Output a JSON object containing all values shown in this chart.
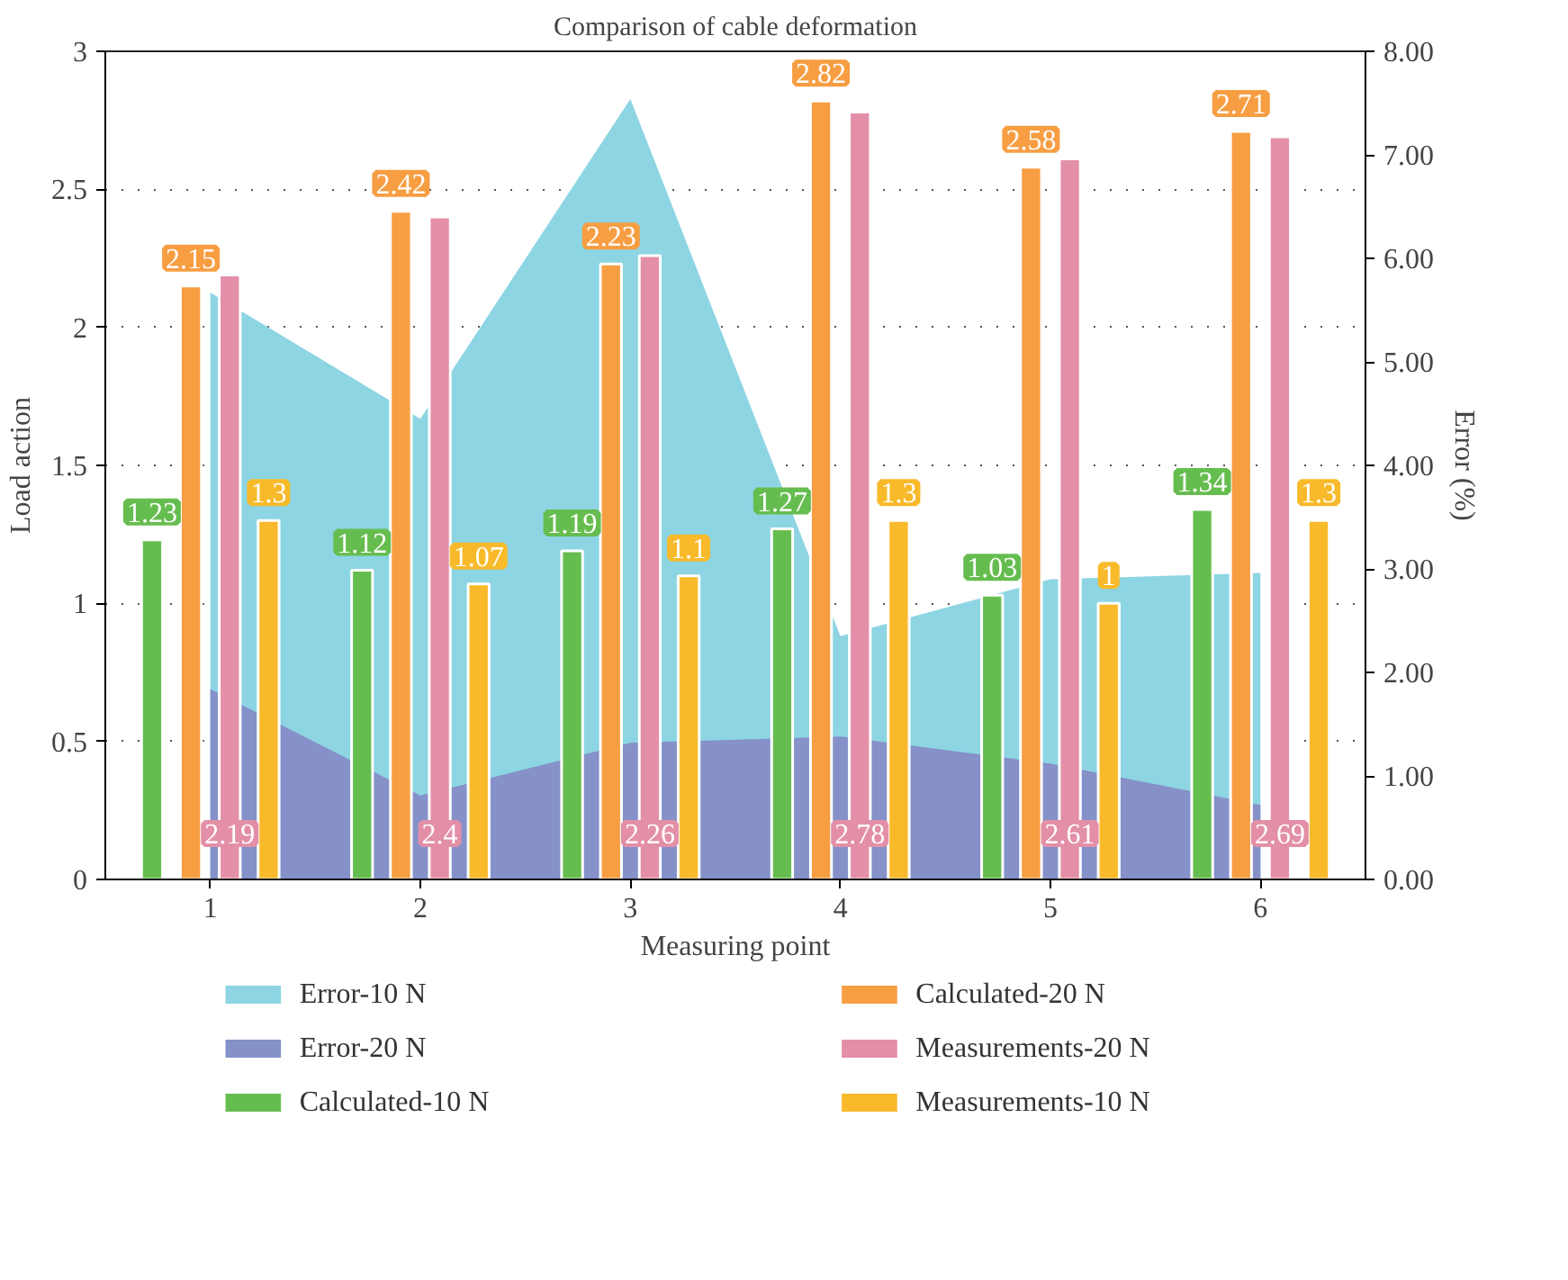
{
  "chart_data": {
    "type": "bar",
    "title": "Comparison of cable deformation",
    "xlabel": "Measuring point",
    "ylabel": "Load action",
    "y2label": "Error (%)",
    "categories": [
      "1",
      "2",
      "3",
      "4",
      "5",
      "6"
    ],
    "series": [
      {
        "name": "Error-10 N",
        "type": "area",
        "axis": "y2",
        "color": "#8dd5e3",
        "values": [
          5.67,
          4.45,
          7.54,
          2.35,
          2.9,
          2.96
        ]
      },
      {
        "name": "Error-20 N",
        "type": "area",
        "axis": "y2",
        "color": "#8591c8",
        "values": [
          1.84,
          0.81,
          1.32,
          1.38,
          1.12,
          0.72
        ]
      },
      {
        "name": "Calculated-10 N",
        "color": "#66bd4f",
        "values": [
          1.23,
          1.12,
          1.19,
          1.27,
          1.03,
          1.34
        ],
        "value_labels": [
          "1.23",
          "1.12",
          "1.19",
          "1.27",
          "1.03",
          "1.34"
        ]
      },
      {
        "name": "Calculated-20 N",
        "color": "#f79e43",
        "values": [
          2.15,
          2.42,
          2.23,
          2.82,
          2.58,
          2.71
        ],
        "value_labels": [
          "2.15",
          "2.42",
          "2.23",
          "2.82",
          "2.58",
          "2.71"
        ]
      },
      {
        "name": "Measurements-20 N",
        "color": "#e38fa8",
        "values": [
          2.19,
          2.4,
          2.26,
          2.78,
          2.61,
          2.69
        ],
        "value_labels": [
          "2.19",
          "2.4",
          "2.26",
          "2.78",
          "2.61",
          "2.69"
        ]
      },
      {
        "name": "Measurements-10 N",
        "color": "#f8ba2a",
        "values": [
          1.3,
          1.07,
          1.1,
          1.3,
          1,
          1.3
        ],
        "value_labels": [
          "1.3",
          "1.07",
          "1.1",
          "1.3",
          "1",
          "1.3"
        ]
      }
    ],
    "ylim": [
      0,
      3
    ],
    "yticks": [
      0,
      0.5,
      1,
      1.5,
      2,
      2.5,
      3
    ],
    "y2lim": [
      0,
      8
    ],
    "y2ticks": [
      {
        "value": 0,
        "label": "0.00"
      },
      {
        "value": 1,
        "label": "1.00"
      },
      {
        "value": 2,
        "label": "2.00"
      },
      {
        "value": 3,
        "label": "3.00"
      },
      {
        "value": 4,
        "label": "4.00"
      },
      {
        "value": 5,
        "label": "5.00"
      },
      {
        "value": 6,
        "label": "6.00"
      },
      {
        "value": 7,
        "label": "7.00"
      },
      {
        "value": 8,
        "label": "8.00"
      }
    ],
    "grid": "y",
    "legend": "bottom"
  }
}
